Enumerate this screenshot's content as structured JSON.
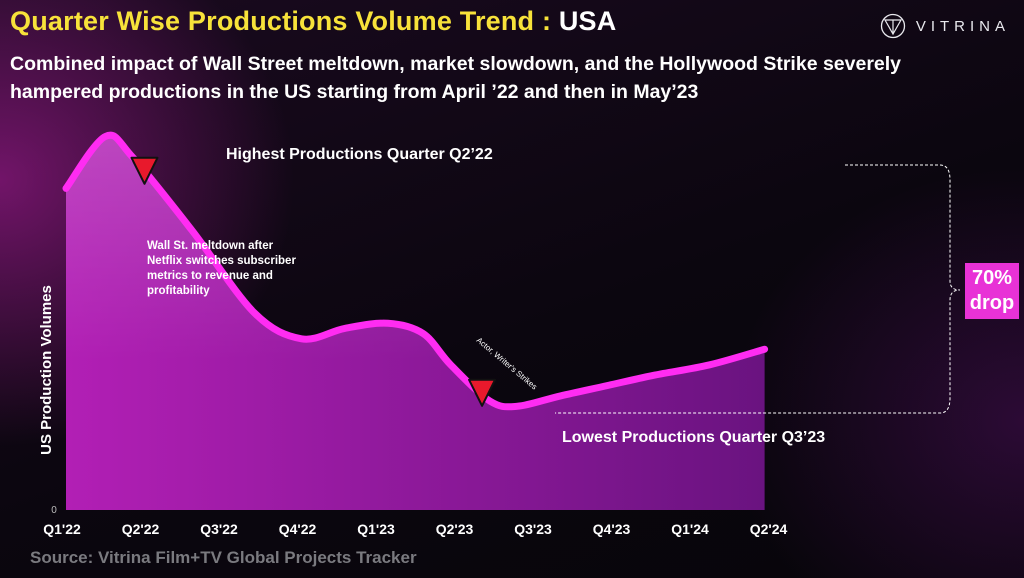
{
  "header": {
    "title_main": "Quarter Wise Productions Volume Trend :",
    "title_region": "USA",
    "subtitle": "Combined impact of Wall Street meltdown, market slowdown, and the  Hollywood Strike severely hampered productions in the US starting from April ’22 and then in May’23"
  },
  "brand": {
    "name": "VITRINA",
    "icon": "vitrina-logo-icon"
  },
  "source": "Source: Vitrina Film+TV Global Projects Tracker",
  "colors": {
    "line": "#ff2cf2",
    "accent": "#e832d6",
    "marker": "#e8192c",
    "title": "#f7e23a"
  },
  "drop_badge": {
    "line1": "70%",
    "line2": "drop"
  },
  "chart_data": {
    "type": "area",
    "title": "Quarter Wise Productions Volume Trend : USA",
    "xlabel": "",
    "ylabel": "US Production Volumes",
    "categories": [
      "Q1'22",
      "Q2'22",
      "Q3'22",
      "Q4'22",
      "Q1'23",
      "Q2'23",
      "Q3'23",
      "Q4'23",
      "Q1'24",
      "Q2'24"
    ],
    "x": [
      0,
      0.5,
      0.85,
      1.6,
      2.4,
      3.0,
      3.55,
      4.1,
      4.55,
      4.9,
      5.4,
      5.75,
      6.3,
      6.9,
      7.5,
      8.2,
      8.9
    ],
    "y": [
      62,
      72,
      68,
      54,
      38,
      33,
      35,
      36,
      34,
      28,
      21,
      20,
      22,
      24,
      26,
      28,
      31
    ],
    "ylim": [
      0,
      80
    ],
    "y_ticks": [
      "0"
    ],
    "grid": false,
    "annotations": {
      "peak": "Highest Productions Quarter Q2’22",
      "trough": "Lowest  Productions Quarter Q3’23",
      "event1": [
        "Wall St. meltdown after",
        "Netflix switches subscriber",
        "metrics to revenue and",
        "profitability"
      ],
      "event1_x": 1.0,
      "event2": "Actor, Writer's Strikes",
      "event2_x": 5.3
    },
    "drop_percent": "70%"
  }
}
